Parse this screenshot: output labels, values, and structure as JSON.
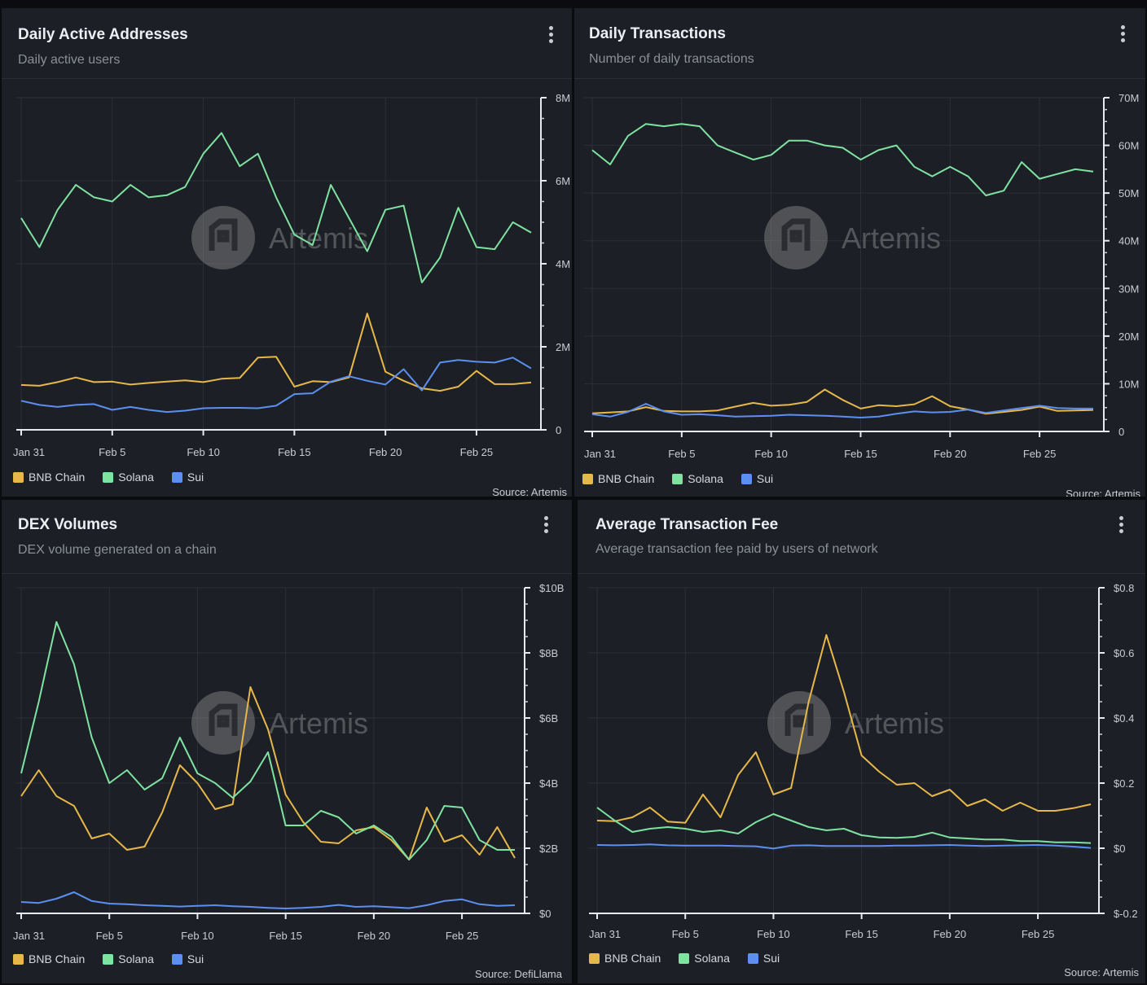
{
  "colors": {
    "bnb": "#e6b84a",
    "solana": "#7ee2a0",
    "sui": "#5b8ff0"
  },
  "watermark": "Artemis",
  "panels": [
    {
      "title": "Daily Active Addresses",
      "subtitle": "Daily active users",
      "source": "Source: Artemis",
      "legend": [
        "BNB Chain",
        "Solana",
        "Sui"
      ]
    },
    {
      "title": "Daily Transactions",
      "subtitle": "Number of daily transactions",
      "source": "Source: Artemis",
      "legend": [
        "BNB Chain",
        "Solana",
        "Sui"
      ]
    },
    {
      "title": "DEX Volumes",
      "subtitle": "DEX volume generated on a chain",
      "source": "Source: DefiLlama",
      "legend": [
        "BNB Chain",
        "Solana",
        "Sui"
      ]
    },
    {
      "title": "Average Transaction Fee",
      "subtitle": "Average transaction fee paid by users of network",
      "source": "Source: Artemis",
      "legend": [
        "BNB Chain",
        "Solana",
        "Sui"
      ]
    }
  ],
  "chart_data": [
    {
      "type": "line",
      "title": "Daily Active Addresses",
      "x": [
        "Jan 31",
        "Feb 1",
        "Feb 2",
        "Feb 3",
        "Feb 4",
        "Feb 5",
        "Feb 6",
        "Feb 7",
        "Feb 8",
        "Feb 9",
        "Feb 10",
        "Feb 11",
        "Feb 12",
        "Feb 13",
        "Feb 14",
        "Feb 15",
        "Feb 16",
        "Feb 17",
        "Feb 18",
        "Feb 19",
        "Feb 20",
        "Feb 21",
        "Feb 22",
        "Feb 23",
        "Feb 24",
        "Feb 25",
        "Feb 26",
        "Feb 27",
        "Feb 28"
      ],
      "x_ticks": [
        "Jan 31",
        "Feb 5",
        "Feb 10",
        "Feb 15",
        "Feb 20",
        "Feb 25"
      ],
      "y_ticks": [
        "0",
        "2M",
        "4M",
        "6M",
        "8M"
      ],
      "ylim": [
        0,
        8000000
      ],
      "series": [
        {
          "name": "BNB Chain",
          "values": [
            1080000,
            1060000,
            1150000,
            1260000,
            1150000,
            1160000,
            1090000,
            1130000,
            1160000,
            1190000,
            1150000,
            1230000,
            1250000,
            1740000,
            1760000,
            1040000,
            1170000,
            1150000,
            1260000,
            2800000,
            1400000,
            1180000,
            1000000,
            940000,
            1040000,
            1420000,
            1100000,
            1100000,
            1140000
          ]
        },
        {
          "name": "Solana",
          "values": [
            5100000,
            4400000,
            5300000,
            5900000,
            5600000,
            5500000,
            5900000,
            5600000,
            5650000,
            5850000,
            6650000,
            7150000,
            6350000,
            6650000,
            5600000,
            4700000,
            4450000,
            5900000,
            5100000,
            4300000,
            5300000,
            5400000,
            3550000,
            4150000,
            5350000,
            4400000,
            4350000,
            5000000,
            4750000
          ]
        },
        {
          "name": "Sui",
          "values": [
            700000,
            600000,
            550000,
            600000,
            620000,
            480000,
            550000,
            480000,
            430000,
            460000,
            520000,
            530000,
            530000,
            520000,
            580000,
            860000,
            880000,
            1160000,
            1290000,
            1180000,
            1090000,
            1460000,
            950000,
            1620000,
            1680000,
            1640000,
            1620000,
            1740000,
            1480000
          ]
        }
      ]
    },
    {
      "type": "line",
      "title": "Daily Transactions",
      "x": [
        "Jan 31",
        "Feb 1",
        "Feb 2",
        "Feb 3",
        "Feb 4",
        "Feb 5",
        "Feb 6",
        "Feb 7",
        "Feb 8",
        "Feb 9",
        "Feb 10",
        "Feb 11",
        "Feb 12",
        "Feb 13",
        "Feb 14",
        "Feb 15",
        "Feb 16",
        "Feb 17",
        "Feb 18",
        "Feb 19",
        "Feb 20",
        "Feb 21",
        "Feb 22",
        "Feb 23",
        "Feb 24",
        "Feb 25",
        "Feb 26",
        "Feb 27",
        "Feb 28"
      ],
      "x_ticks": [
        "Jan 31",
        "Feb 5",
        "Feb 10",
        "Feb 15",
        "Feb 20",
        "Feb 25"
      ],
      "y_ticks": [
        "0",
        "10M",
        "20M",
        "30M",
        "40M",
        "50M",
        "60M",
        "70M"
      ],
      "ylim": [
        0,
        70000000
      ],
      "series": [
        {
          "name": "BNB Chain",
          "values": [
            3800000,
            4000000,
            4200000,
            5100000,
            4300000,
            4200000,
            4200000,
            4400000,
            5200000,
            6000000,
            5400000,
            5600000,
            6200000,
            8800000,
            6600000,
            4800000,
            5500000,
            5300000,
            5700000,
            7400000,
            5300000,
            4600000,
            3700000,
            4100000,
            4500000,
            5200000,
            4300000,
            4400000,
            4500000
          ]
        },
        {
          "name": "Solana",
          "values": [
            59000000,
            56000000,
            62000000,
            64500000,
            64000000,
            64500000,
            64000000,
            60000000,
            58500000,
            57000000,
            58000000,
            61000000,
            61000000,
            60000000,
            59500000,
            57000000,
            59000000,
            60000000,
            55500000,
            53500000,
            55500000,
            53500000,
            49500000,
            50500000,
            56500000,
            53000000,
            54000000,
            55000000,
            54500000
          ]
        },
        {
          "name": "Sui",
          "values": [
            3600000,
            3100000,
            4100000,
            5800000,
            4200000,
            3500000,
            3600000,
            3400000,
            3100000,
            3200000,
            3300000,
            3500000,
            3400000,
            3300000,
            3100000,
            2900000,
            3100000,
            3700000,
            4200000,
            4000000,
            4100000,
            4600000,
            3900000,
            4400000,
            4900000,
            5400000,
            4900000,
            4800000,
            4800000
          ]
        }
      ]
    },
    {
      "type": "line",
      "title": "DEX Volumes",
      "x": [
        "Jan 31",
        "Feb 1",
        "Feb 2",
        "Feb 3",
        "Feb 4",
        "Feb 5",
        "Feb 6",
        "Feb 7",
        "Feb 8",
        "Feb 9",
        "Feb 10",
        "Feb 11",
        "Feb 12",
        "Feb 13",
        "Feb 14",
        "Feb 15",
        "Feb 16",
        "Feb 17",
        "Feb 18",
        "Feb 19",
        "Feb 20",
        "Feb 21",
        "Feb 22",
        "Feb 23",
        "Feb 24",
        "Feb 25",
        "Feb 26",
        "Feb 27",
        "Feb 28"
      ],
      "x_ticks": [
        "Jan 31",
        "Feb 5",
        "Feb 10",
        "Feb 15",
        "Feb 20",
        "Feb 25"
      ],
      "y_ticks": [
        "$0",
        "$2B",
        "$4B",
        "$6B",
        "$8B",
        "$10B"
      ],
      "ylim": [
        0,
        10000000000
      ],
      "series": [
        {
          "name": "BNB Chain",
          "values": [
            3600000000,
            4400000000,
            3600000000,
            3300000000,
            2300000000,
            2450000000,
            1950000000,
            2050000000,
            3100000000,
            4550000000,
            4000000000,
            3200000000,
            3350000000,
            6950000000,
            5650000000,
            3650000000,
            2800000000,
            2200000000,
            2150000000,
            2550000000,
            2650000000,
            2250000000,
            1650000000,
            3250000000,
            2200000000,
            2400000000,
            1800000000,
            2650000000,
            1700000000
          ]
        },
        {
          "name": "Solana",
          "values": [
            4300000000,
            6500000000,
            8950000000,
            7650000000,
            5400000000,
            4000000000,
            4400000000,
            3800000000,
            4150000000,
            5400000000,
            4300000000,
            4000000000,
            3550000000,
            4050000000,
            4950000000,
            2700000000,
            2700000000,
            3150000000,
            2950000000,
            2450000000,
            2700000000,
            2350000000,
            1650000000,
            2250000000,
            3300000000,
            3250000000,
            2250000000,
            1950000000,
            1950000000
          ]
        },
        {
          "name": "Sui",
          "values": [
            350000000,
            320000000,
            450000000,
            650000000,
            380000000,
            300000000,
            280000000,
            250000000,
            230000000,
            210000000,
            230000000,
            250000000,
            220000000,
            200000000,
            170000000,
            150000000,
            170000000,
            200000000,
            260000000,
            200000000,
            220000000,
            190000000,
            160000000,
            250000000,
            380000000,
            430000000,
            280000000,
            230000000,
            250000000
          ]
        }
      ]
    },
    {
      "type": "line",
      "title": "Average Transaction Fee",
      "x": [
        "Jan 31",
        "Feb 1",
        "Feb 2",
        "Feb 3",
        "Feb 4",
        "Feb 5",
        "Feb 6",
        "Feb 7",
        "Feb 8",
        "Feb 9",
        "Feb 10",
        "Feb 11",
        "Feb 12",
        "Feb 13",
        "Feb 14",
        "Feb 15",
        "Feb 16",
        "Feb 17",
        "Feb 18",
        "Feb 19",
        "Feb 20",
        "Feb 21",
        "Feb 22",
        "Feb 23",
        "Feb 24",
        "Feb 25",
        "Feb 26",
        "Feb 27",
        "Feb 28"
      ],
      "x_ticks": [
        "Jan 31",
        "Feb 5",
        "Feb 10",
        "Feb 15",
        "Feb 20",
        "Feb 25"
      ],
      "y_ticks": [
        "$-0.2",
        "$0",
        "$0.2",
        "$0.4",
        "$0.6",
        "$0.8"
      ],
      "ylim": [
        -0.2,
        0.8
      ],
      "series": [
        {
          "name": "BNB Chain",
          "values": [
            0.085,
            0.083,
            0.095,
            0.125,
            0.082,
            0.078,
            0.165,
            0.095,
            0.225,
            0.295,
            0.165,
            0.185,
            0.45,
            0.655,
            0.48,
            0.285,
            0.235,
            0.195,
            0.2,
            0.16,
            0.18,
            0.13,
            0.15,
            0.115,
            0.14,
            0.115,
            0.115,
            0.123,
            0.135
          ]
        },
        {
          "name": "Solana",
          "values": [
            0.125,
            0.085,
            0.05,
            0.06,
            0.065,
            0.06,
            0.05,
            0.055,
            0.045,
            0.08,
            0.105,
            0.085,
            0.065,
            0.055,
            0.06,
            0.04,
            0.033,
            0.032,
            0.035,
            0.048,
            0.033,
            0.03,
            0.027,
            0.027,
            0.022,
            0.022,
            0.018,
            0.018,
            0.016
          ]
        },
        {
          "name": "Sui",
          "values": [
            0.01,
            0.009,
            0.01,
            0.012,
            0.009,
            0.008,
            0.008,
            0.008,
            0.007,
            0.006,
            -0.001,
            0.008,
            0.009,
            0.007,
            0.007,
            0.007,
            0.007,
            0.008,
            0.008,
            0.009,
            0.01,
            0.008,
            0.007,
            0.008,
            0.009,
            0.01,
            0.008,
            0.005,
            0.001
          ]
        }
      ]
    }
  ]
}
